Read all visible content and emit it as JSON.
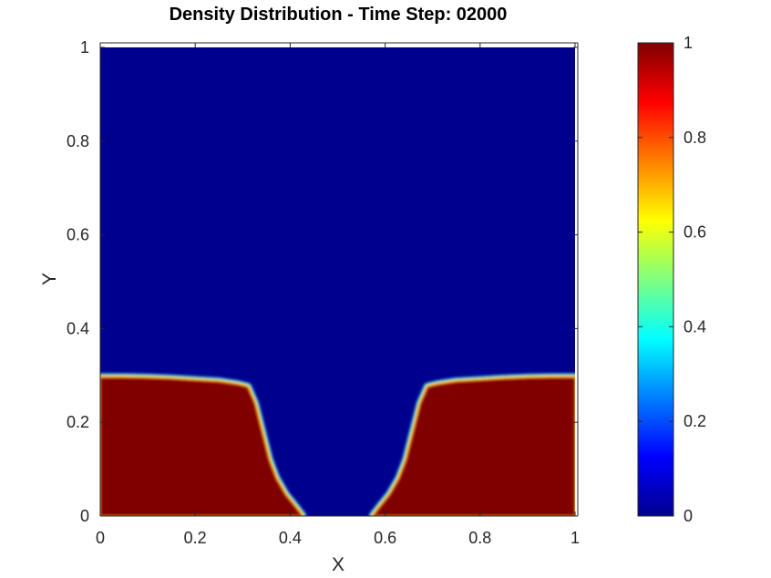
{
  "chart_data": {
    "type": "heatmap",
    "title": "Density Distribution - Time Step: 02000",
    "xlabel": "X",
    "ylabel": "Y",
    "xlim": [
      0,
      1
    ],
    "ylim": [
      0,
      1
    ],
    "x_ticks": [
      "0",
      "0.2",
      "0.4",
      "0.6",
      "0.8",
      "1"
    ],
    "y_ticks": [
      "0",
      "0.2",
      "0.4",
      "0.6",
      "0.8",
      "1"
    ],
    "x_tick_values": [
      0,
      0.2,
      0.4,
      0.6,
      0.8,
      1
    ],
    "y_tick_values": [
      0,
      0.2,
      0.4,
      0.6,
      0.8,
      1
    ],
    "colormap": "jet",
    "colorbar": {
      "range": [
        0,
        1
      ],
      "ticks": [
        "0",
        "0.2",
        "0.4",
        "0.6",
        "0.8",
        "1"
      ],
      "tick_values": [
        0,
        0.2,
        0.4,
        0.6,
        0.8,
        1
      ],
      "placement": "right"
    },
    "background_value": 0,
    "interface": {
      "dense_value": 1,
      "left_region": [
        [
          0.0,
          0.295
        ],
        [
          0.05,
          0.295
        ],
        [
          0.1,
          0.294
        ],
        [
          0.15,
          0.292
        ],
        [
          0.2,
          0.289
        ],
        [
          0.25,
          0.286
        ],
        [
          0.29,
          0.28
        ],
        [
          0.31,
          0.275
        ],
        [
          0.325,
          0.24
        ],
        [
          0.335,
          0.2
        ],
        [
          0.345,
          0.16
        ],
        [
          0.355,
          0.12
        ],
        [
          0.37,
          0.08
        ],
        [
          0.39,
          0.045
        ],
        [
          0.41,
          0.02
        ],
        [
          0.425,
          0.0
        ]
      ],
      "right_region": [
        [
          0.575,
          0.0
        ],
        [
          0.59,
          0.02
        ],
        [
          0.61,
          0.045
        ],
        [
          0.63,
          0.08
        ],
        [
          0.645,
          0.12
        ],
        [
          0.655,
          0.16
        ],
        [
          0.665,
          0.2
        ],
        [
          0.675,
          0.24
        ],
        [
          0.69,
          0.275
        ],
        [
          0.71,
          0.28
        ],
        [
          0.75,
          0.286
        ],
        [
          0.8,
          0.289
        ],
        [
          0.85,
          0.292
        ],
        [
          0.9,
          0.294
        ],
        [
          0.95,
          0.295
        ],
        [
          1.0,
          0.295
        ]
      ]
    }
  }
}
